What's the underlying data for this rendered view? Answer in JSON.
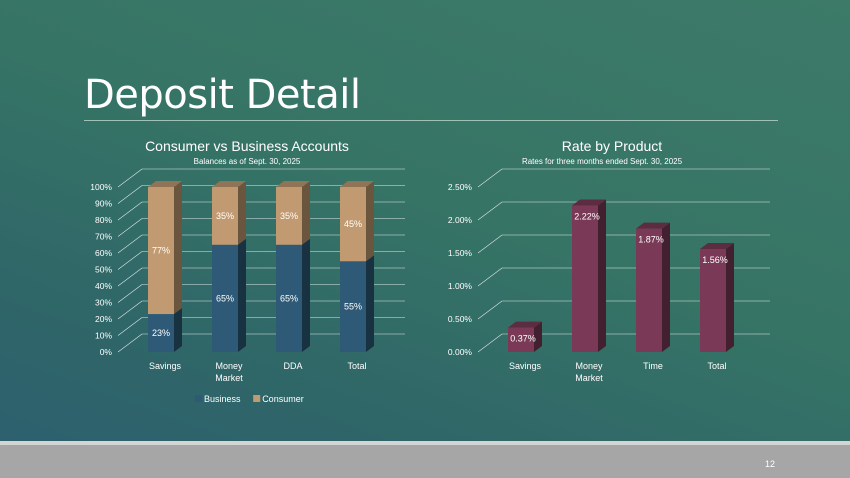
{
  "slide": {
    "title": "Deposit Detail",
    "page_number": "12",
    "colors": {
      "business": "#2e5a78",
      "consumer": "#c19a72",
      "rate": "#7a3a57",
      "grid": "#ffffff"
    }
  },
  "chart_data": [
    {
      "type": "bar",
      "stacked": true,
      "title": "Consumer vs Business Accounts",
      "subtitle": "Balances as of Sept. 30, 2025",
      "categories": [
        "Savings",
        "Money Market",
        "DDA",
        "Total"
      ],
      "series": [
        {
          "name": "Business",
          "values": [
            23,
            65,
            65,
            55
          ]
        },
        {
          "name": "Consumer",
          "values": [
            77,
            35,
            35,
            45
          ]
        }
      ],
      "yticks": [
        "0%",
        "10%",
        "20%",
        "30%",
        "40%",
        "50%",
        "60%",
        "70%",
        "80%",
        "90%",
        "100%"
      ],
      "ylim": [
        0,
        100
      ],
      "legend": [
        "Business",
        "Consumer"
      ],
      "legend_position": "bottom",
      "value_labels": [
        [
          "23%",
          "65%",
          "65%",
          "55%"
        ],
        [
          "77%",
          "35%",
          "35%",
          "45%"
        ]
      ]
    },
    {
      "type": "bar",
      "title": "Rate by Product",
      "subtitle": "Rates for three months ended Sept. 30, 2025",
      "categories": [
        "Savings",
        "Money Market",
        "Time",
        "Total"
      ],
      "values": [
        0.37,
        2.22,
        1.87,
        1.56
      ],
      "value_labels": [
        "0.37%",
        "2.22%",
        "1.87%",
        "1.56%"
      ],
      "yticks": [
        "0.00%",
        "0.50%",
        "1.00%",
        "1.50%",
        "2.00%",
        "2.50%"
      ],
      "ylim": [
        0,
        2.5
      ]
    }
  ]
}
